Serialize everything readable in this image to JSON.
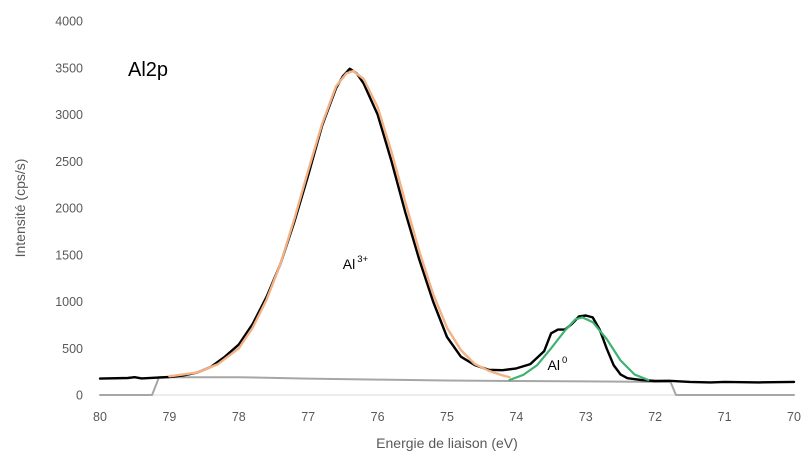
{
  "chart_data": {
    "type": "line",
    "panel_label": "Al2p",
    "xlabel": "Energie de liaison (eV)",
    "ylabel": "Intensité (cps/s)",
    "xlim": [
      80,
      70
    ],
    "ylim": [
      0,
      4000
    ],
    "x_reversed": true,
    "grid": false,
    "legend": "none",
    "x_ticks": [
      "80",
      "79",
      "78",
      "77",
      "76",
      "75",
      "74",
      "73",
      "72",
      "71",
      "70"
    ],
    "y_ticks": [
      "0",
      "500",
      "1000",
      "1500",
      "2000",
      "2500",
      "3000",
      "3500",
      "4000"
    ],
    "annotations": [
      {
        "base": "Al",
        "sup": "3+",
        "x": 76.3,
        "y": 1350
      },
      {
        "base": "Al",
        "sup": "0",
        "x": 73.35,
        "y": 270
      }
    ],
    "colors": {
      "measured": "#000000",
      "al3_fit": "#f4b183",
      "al0_fit": "#3cb371",
      "background": "#a6a6a6",
      "axis": "#d9d9d9",
      "text": "#595959"
    },
    "series": [
      {
        "key": "measured",
        "points": [
          [
            80,
            175
          ],
          [
            79.6,
            182
          ],
          [
            79.5,
            190
          ],
          [
            79.4,
            178
          ],
          [
            79.2,
            185
          ],
          [
            79.0,
            192
          ],
          [
            78.8,
            210
          ],
          [
            78.6,
            240
          ],
          [
            78.4,
            300
          ],
          [
            78.2,
            410
          ],
          [
            78.0,
            540
          ],
          [
            77.8,
            760
          ],
          [
            77.6,
            1050
          ],
          [
            77.4,
            1400
          ],
          [
            77.2,
            1850
          ],
          [
            77.0,
            2350
          ],
          [
            76.8,
            2880
          ],
          [
            76.6,
            3280
          ],
          [
            76.5,
            3410
          ],
          [
            76.4,
            3490
          ],
          [
            76.3,
            3440
          ],
          [
            76.2,
            3330
          ],
          [
            76.0,
            3000
          ],
          [
            75.8,
            2500
          ],
          [
            75.6,
            1950
          ],
          [
            75.4,
            1450
          ],
          [
            75.2,
            1000
          ],
          [
            75.0,
            620
          ],
          [
            74.8,
            410
          ],
          [
            74.6,
            320
          ],
          [
            74.4,
            270
          ],
          [
            74.2,
            265
          ],
          [
            74.0,
            285
          ],
          [
            73.8,
            330
          ],
          [
            73.6,
            470
          ],
          [
            73.5,
            660
          ],
          [
            73.4,
            700
          ],
          [
            73.3,
            700
          ],
          [
            73.2,
            760
          ],
          [
            73.1,
            840
          ],
          [
            73.0,
            850
          ],
          [
            72.9,
            830
          ],
          [
            72.8,
            700
          ],
          [
            72.7,
            500
          ],
          [
            72.6,
            320
          ],
          [
            72.5,
            220
          ],
          [
            72.4,
            180
          ],
          [
            72.2,
            160
          ],
          [
            72.0,
            150
          ],
          [
            71.8,
            152
          ],
          [
            71.5,
            140
          ],
          [
            71.2,
            135
          ],
          [
            71.0,
            140
          ],
          [
            70.5,
            135
          ],
          [
            70,
            140
          ]
        ]
      },
      {
        "key": "al3_fit",
        "points": [
          [
            79.0,
            200
          ],
          [
            78.6,
            240
          ],
          [
            78.3,
            330
          ],
          [
            78.0,
            500
          ],
          [
            77.8,
            720
          ],
          [
            77.6,
            1020
          ],
          [
            77.4,
            1400
          ],
          [
            77.2,
            1880
          ],
          [
            77.0,
            2400
          ],
          [
            76.8,
            2900
          ],
          [
            76.6,
            3300
          ],
          [
            76.45,
            3440
          ],
          [
            76.35,
            3465
          ],
          [
            76.2,
            3380
          ],
          [
            76.0,
            3080
          ],
          [
            75.8,
            2600
          ],
          [
            75.6,
            2060
          ],
          [
            75.4,
            1540
          ],
          [
            75.2,
            1080
          ],
          [
            75.0,
            720
          ],
          [
            74.8,
            480
          ],
          [
            74.6,
            330
          ],
          [
            74.4,
            260
          ],
          [
            74.2,
            210
          ],
          [
            74.1,
            190
          ]
        ]
      },
      {
        "key": "al0_fit",
        "points": [
          [
            74.1,
            160
          ],
          [
            73.9,
            215
          ],
          [
            73.7,
            320
          ],
          [
            73.5,
            500
          ],
          [
            73.3,
            690
          ],
          [
            73.15,
            810
          ],
          [
            73.05,
            830
          ],
          [
            72.9,
            780
          ],
          [
            72.7,
            600
          ],
          [
            72.5,
            370
          ],
          [
            72.3,
            220
          ],
          [
            72.1,
            160
          ]
        ]
      },
      {
        "key": "background",
        "points": [
          [
            80,
            0
          ],
          [
            79.25,
            0
          ],
          [
            79.15,
            190
          ],
          [
            78,
            190
          ],
          [
            77,
            175
          ],
          [
            76,
            165
          ],
          [
            75,
            155
          ],
          [
            74,
            150
          ],
          [
            73,
            145
          ],
          [
            72,
            140
          ],
          [
            71.78,
            140
          ],
          [
            71.7,
            0
          ],
          [
            70,
            0
          ]
        ]
      }
    ]
  }
}
